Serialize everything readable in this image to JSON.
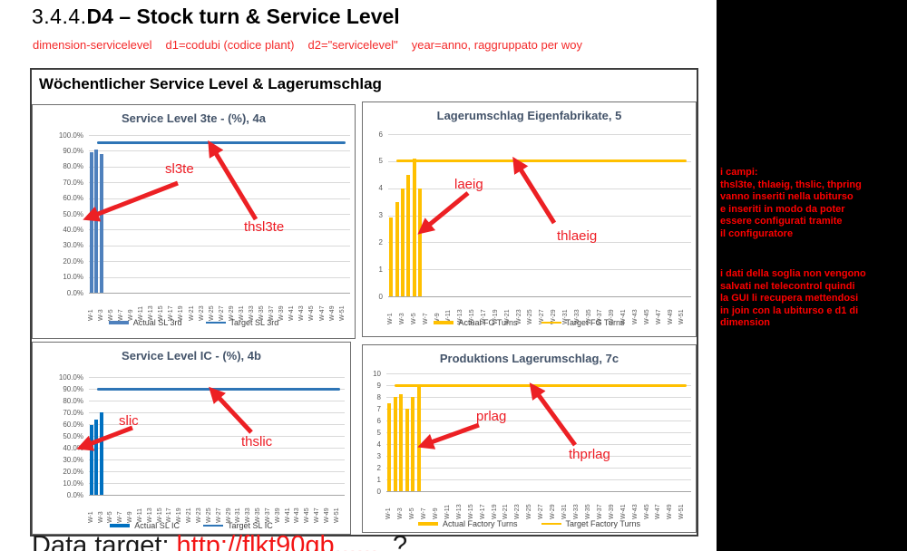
{
  "page": {
    "heading_prefix": "3.4.4.",
    "heading_main": "D4 – Stock turn & Service Level",
    "subtitle_parts": [
      "dimension-servicelevel",
      "d1=codubi (codice plant)",
      "d2=\"servicelevel\"",
      "year=anno, raggruppato per woy"
    ],
    "footer_label": "Data target:",
    "footer_link": "http://flkt90gb......",
    "footer_suffix": "?"
  },
  "panel": {
    "title": "Wöchentlicher Service Level & Lagerumschlag"
  },
  "sidebar": {
    "bg_color": "#000000",
    "text_color": "#ff0000",
    "paragraphs": [
      "i campi:\nthsl3te, thlaeig, thslic, thpring\nvanno inseriti nella ubiturso\ne inseriti in modo da poter\nessere configurati tramite\nil configuratore",
      "i dati della soglia non vengono\nsalvati nel telecontrol quindi\nla GUI li recupera mettendosi\nin join con la ubiturso e d1 di\ndimension"
    ]
  },
  "chart_data": [
    {
      "type": "bar",
      "title": "Service Level 3te - (%), 4a",
      "yticks": [
        "100.0%",
        "90.0%",
        "80.0%",
        "70.0%",
        "60.0%",
        "50.0%",
        "40.0%",
        "30.0%",
        "20.0%",
        "10.0%",
        "0.0%"
      ],
      "ymax": 100,
      "weeks_total": 52,
      "categories": [
        "W-1",
        "W-3",
        "W-5",
        "W-7",
        "W-9",
        "W-11",
        "W-13",
        "W-15",
        "W-17",
        "W-19",
        "W-21",
        "W-23",
        "W-25",
        "W-27",
        "W-29",
        "W-31",
        "W-33",
        "W-35",
        "W-37",
        "W-39",
        "W-41",
        "W-43",
        "W-45",
        "W-47",
        "W-49",
        "W-51"
      ],
      "bar_weeks": [
        "W-1",
        "W-2",
        "W-3"
      ],
      "values": [
        89,
        91,
        88
      ],
      "target": 95,
      "bar_color": "#4f81bd",
      "line_color": "#2e75b6",
      "legend": [
        {
          "label": "Actual SL 3rd",
          "swatch": "bar"
        },
        {
          "label": "Target SL 3rd",
          "swatch": "line"
        }
      ],
      "annotations": [
        "sl3te",
        "thsl3te"
      ]
    },
    {
      "type": "bar",
      "title": "Lagerumschlag Eigenfabrikate, 5",
      "yticks": [
        "6",
        "5",
        "4",
        "3",
        "2",
        "1",
        "0"
      ],
      "ymax": 6,
      "weeks_total": 52,
      "categories": [
        "W-1",
        "W-3",
        "W-5",
        "W-7",
        "W-9",
        "W-11",
        "W-13",
        "W-15",
        "W-17",
        "W-19",
        "W-21",
        "W-23",
        "W-25",
        "W-27",
        "W-29",
        "W-31",
        "W-33",
        "W-35",
        "W-37",
        "W-39",
        "W-41",
        "W-43",
        "W-45",
        "W-47",
        "W-49",
        "W-51"
      ],
      "bar_weeks": [
        "W-1",
        "W-2",
        "W-3",
        "W-4",
        "W-5",
        "W-6"
      ],
      "values": [
        2.9,
        3.5,
        4.0,
        4.5,
        5.1,
        4.0
      ],
      "target": 5,
      "bar_color": "#ffc000",
      "line_color": "#ffc000",
      "legend": [
        {
          "label": "Actual FG Turns",
          "swatch": "bar"
        },
        {
          "label": "Target FG Turns",
          "swatch": "line"
        }
      ],
      "annotations": [
        "laeig",
        "thlaeig"
      ]
    },
    {
      "type": "bar",
      "title": "Service Level IC - (%), 4b",
      "yticks": [
        "100.0%",
        "90.0%",
        "80.0%",
        "70.0%",
        "60.0%",
        "50.0%",
        "40.0%",
        "30.0%",
        "20.0%",
        "10.0%",
        "0.0%"
      ],
      "ymax": 100,
      "weeks_total": 52,
      "categories": [
        "W-1",
        "W-3",
        "W-5",
        "W-7",
        "W-9",
        "W-11",
        "W-13",
        "W-15",
        "W-17",
        "W-19",
        "W-21",
        "W-23",
        "W-25",
        "W-27",
        "W-29",
        "W-31",
        "W-33",
        "W-35",
        "W-37",
        "W-39",
        "W-41",
        "W-43",
        "W-45",
        "W-47",
        "W-49",
        "W-51"
      ],
      "bar_weeks": [
        "W-1",
        "W-2",
        "W-3"
      ],
      "values": [
        59,
        64,
        70
      ],
      "target": 90,
      "bar_color": "#0070c0",
      "line_color": "#2e75b6",
      "legend": [
        {
          "label": "Actual SL IC",
          "swatch": "bar"
        },
        {
          "label": "Target SL IC",
          "swatch": "line"
        }
      ],
      "annotations": [
        "slic",
        "thslic"
      ]
    },
    {
      "type": "bar",
      "title": "Produktions Lagerumschlag, 7c",
      "yticks": [
        "10",
        "9",
        "8",
        "7",
        "6",
        "5",
        "4",
        "3",
        "2",
        "1",
        "0"
      ],
      "ymax": 10,
      "weeks_total": 52,
      "categories": [
        "W-1",
        "W-3",
        "W-5",
        "W-7",
        "W-9",
        "W-11",
        "W-13",
        "W-15",
        "W-17",
        "W-19",
        "W-21",
        "W-23",
        "W-25",
        "W-27",
        "W-29",
        "W-31",
        "W-33",
        "W-35",
        "W-37",
        "W-39",
        "W-41",
        "W-43",
        "W-45",
        "W-47",
        "W-49",
        "W-51"
      ],
      "bar_weeks": [
        "W-1",
        "W-2",
        "W-3",
        "W-4",
        "W-5",
        "W-6"
      ],
      "values": [
        7.5,
        8.0,
        8.2,
        7.0,
        8.0,
        9.1
      ],
      "target": 9,
      "bar_color": "#ffc000",
      "line_color": "#ffc000",
      "legend": [
        {
          "label": "Actual Factory Turns",
          "swatch": "bar"
        },
        {
          "label": "Target Factory Turns",
          "swatch": "line"
        }
      ],
      "annotations": [
        "prlag",
        "thprlag"
      ]
    }
  ]
}
